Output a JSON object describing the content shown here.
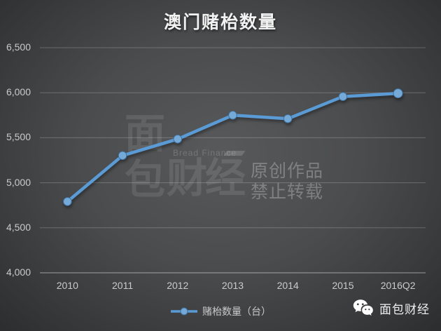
{
  "chart_data": {
    "type": "line",
    "title": "澳门赌枱数量",
    "categories": [
      "2010",
      "2011",
      "2012",
      "2013",
      "2014",
      "2015",
      "2016Q2"
    ],
    "series": [
      {
        "name": "赌枱数量（台）",
        "values": [
          4791,
          5302,
          5485,
          5750,
          5711,
          5957,
          5993
        ]
      }
    ],
    "xlabel": "",
    "ylabel": "",
    "ylim": [
      4000,
      6500
    ],
    "yticks": [
      4000,
      4500,
      5000,
      5500,
      6000,
      6500
    ],
    "ytick_labels": [
      "4,000",
      "4,500",
      "5,000",
      "5,500",
      "6,000",
      "6,500"
    ],
    "grid": true,
    "legend_position": "bottom"
  },
  "watermark": {
    "logo_char_1": "面",
    "logo_char_2": "包",
    "logo_text_en": "Bread Finance",
    "logo_text_cn": "财经",
    "notice_line_1": "原创作品",
    "notice_line_2": "禁止转载"
  },
  "footer": {
    "brand_label": "面包财经",
    "icon": "wechat-icon"
  },
  "colors": {
    "line": "#5b9bd5",
    "marker_fill": "#74a9d8",
    "marker_stroke": "#40719c",
    "grid_line": "rgba(255,255,255,0.22)",
    "axis_line": "rgba(255,255,255,0.5)",
    "tick_text": "#c9cacb",
    "title_text": "#f2f2f2",
    "background_center": "#58595b",
    "background_edge": "#2c2d2f"
  }
}
